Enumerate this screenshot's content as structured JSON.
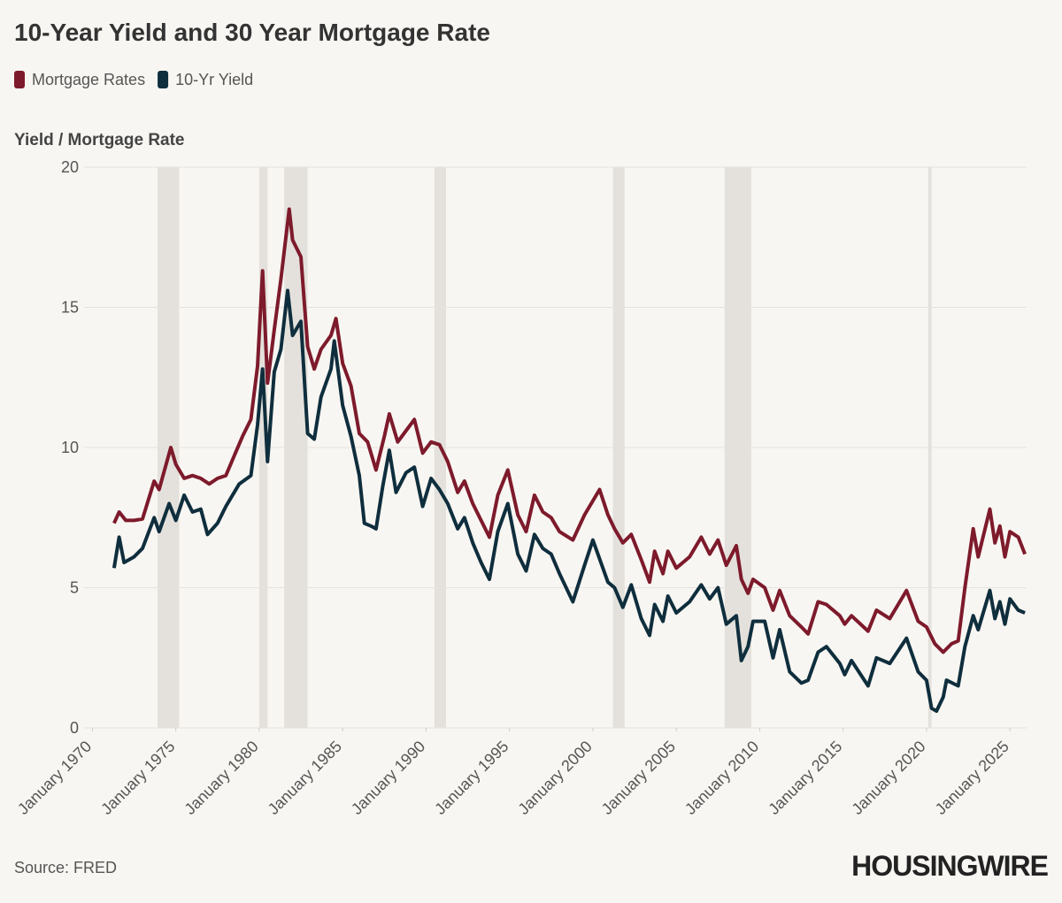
{
  "chart_data": {
    "type": "line",
    "title": "10-Year Yield and 30 Year Mortgage Rate",
    "y_label": "Yield / Mortgage Rate",
    "source": "Source: FRED",
    "brand": "HOUSINGWIRE",
    "xlim": [
      1969.5,
      2026
    ],
    "xticks": [
      {
        "value": 1970,
        "label": "January 1970"
      },
      {
        "value": 1975,
        "label": "January 1975"
      },
      {
        "value": 1980,
        "label": "January 1980"
      },
      {
        "value": 1985,
        "label": "January 1985"
      },
      {
        "value": 1990,
        "label": "January 1990"
      },
      {
        "value": 1995,
        "label": "January 1995"
      },
      {
        "value": 2000,
        "label": "January 2000"
      },
      {
        "value": 2005,
        "label": "January 2005"
      },
      {
        "value": 2010,
        "label": "January 2010"
      },
      {
        "value": 2015,
        "label": "January 2015"
      },
      {
        "value": 2020,
        "label": "January 2020"
      },
      {
        "value": 2025,
        "label": "January 2025"
      }
    ],
    "ylim": [
      0,
      20
    ],
    "yticks": [
      0,
      5,
      10,
      15,
      20
    ],
    "grid": true,
    "recession_color": "#e4e1dc",
    "recessions": [
      [
        1973.9,
        1975.2
      ],
      [
        1980.0,
        1980.5
      ],
      [
        1981.5,
        1982.9
      ],
      [
        1990.5,
        1991.2
      ],
      [
        2001.2,
        2001.9
      ],
      [
        2007.9,
        2009.5
      ],
      [
        2020.1,
        2020.3
      ]
    ],
    "series": [
      {
        "name": "Mortgage Rates",
        "color": "#7d1a2b",
        "x": [
          1971.3,
          1971.6,
          1972.0,
          1972.5,
          1973.0,
          1973.7,
          1974.0,
          1974.7,
          1975.0,
          1975.5,
          1976.0,
          1976.5,
          1977.0,
          1977.5,
          1978.0,
          1978.5,
          1979.0,
          1979.5,
          1979.9,
          1980.2,
          1980.5,
          1980.9,
          1981.3,
          1981.8,
          1982.0,
          1982.5,
          1982.9,
          1983.3,
          1983.7,
          1984.3,
          1984.6,
          1985.0,
          1985.5,
          1986.0,
          1986.5,
          1987.0,
          1987.5,
          1987.8,
          1988.3,
          1988.8,
          1989.3,
          1989.8,
          1990.3,
          1990.8,
          1991.3,
          1991.9,
          1992.3,
          1992.8,
          1993.3,
          1993.8,
          1994.3,
          1994.9,
          1995.5,
          1996.0,
          1996.5,
          1997.0,
          1997.5,
          1998.0,
          1998.8,
          1999.5,
          2000.4,
          2000.9,
          2001.3,
          2001.8,
          2002.3,
          2002.9,
          2003.4,
          2003.7,
          2004.2,
          2004.5,
          2005.0,
          2005.8,
          2006.5,
          2007.0,
          2007.5,
          2008.0,
          2008.6,
          2008.9,
          2009.3,
          2009.6,
          2010.3,
          2010.8,
          2011.2,
          2011.8,
          2012.5,
          2012.9,
          2013.5,
          2014.0,
          2014.8,
          2015.1,
          2015.5,
          2016.5,
          2017.0,
          2017.8,
          2018.8,
          2019.5,
          2020.0,
          2020.5,
          2021.0,
          2021.5,
          2021.9,
          2022.3,
          2022.8,
          2023.1,
          2023.8,
          2024.1,
          2024.4,
          2024.7,
          2025.0,
          2025.5,
          2025.9
        ],
        "values": [
          7.3,
          7.7,
          7.4,
          7.4,
          7.45,
          8.8,
          8.5,
          10.0,
          9.4,
          8.9,
          9.0,
          8.9,
          8.7,
          8.9,
          9.0,
          9.7,
          10.4,
          11.0,
          12.9,
          16.3,
          12.3,
          14.2,
          16.0,
          18.5,
          17.4,
          16.8,
          13.6,
          12.8,
          13.5,
          14.0,
          14.6,
          13.0,
          12.2,
          10.5,
          10.2,
          9.2,
          10.4,
          11.2,
          10.2,
          10.6,
          11.0,
          9.8,
          10.2,
          10.1,
          9.5,
          8.4,
          8.8,
          8.0,
          7.4,
          6.8,
          8.3,
          9.2,
          7.6,
          7.0,
          8.3,
          7.7,
          7.5,
          7.0,
          6.7,
          7.6,
          8.5,
          7.6,
          7.1,
          6.6,
          6.9,
          6.0,
          5.2,
          6.3,
          5.5,
          6.3,
          5.7,
          6.1,
          6.8,
          6.2,
          6.7,
          5.8,
          6.5,
          5.3,
          4.8,
          5.3,
          5.0,
          4.2,
          4.9,
          4.0,
          3.6,
          3.35,
          4.5,
          4.4,
          4.0,
          3.7,
          4.0,
          3.45,
          4.2,
          3.9,
          4.9,
          3.8,
          3.6,
          3.0,
          2.7,
          3.0,
          3.1,
          5.0,
          7.1,
          6.1,
          7.8,
          6.6,
          7.2,
          6.1,
          7.0,
          6.8,
          6.2
        ]
      },
      {
        "name": "10-Yr Yield",
        "color": "#0f2e3d",
        "x": [
          1971.3,
          1971.6,
          1971.9,
          1972.5,
          1973.0,
          1973.7,
          1974.0,
          1974.6,
          1975.0,
          1975.5,
          1976.0,
          1976.5,
          1976.9,
          1977.5,
          1978.0,
          1978.8,
          1979.5,
          1979.9,
          1980.2,
          1980.5,
          1980.9,
          1981.3,
          1981.7,
          1982.0,
          1982.5,
          1982.9,
          1983.3,
          1983.7,
          1984.3,
          1984.5,
          1985.0,
          1985.5,
          1986.0,
          1986.3,
          1986.7,
          1987.0,
          1987.4,
          1987.8,
          1988.2,
          1988.8,
          1989.3,
          1989.8,
          1990.3,
          1990.8,
          1991.3,
          1991.9,
          1992.3,
          1992.8,
          1993.3,
          1993.8,
          1994.3,
          1994.9,
          1995.5,
          1996.0,
          1996.5,
          1997.0,
          1997.5,
          1998.0,
          1998.8,
          1999.5,
          2000.0,
          2000.9,
          2001.3,
          2001.8,
          2002.3,
          2002.9,
          2003.4,
          2003.7,
          2004.2,
          2004.5,
          2005.0,
          2005.8,
          2006.5,
          2007.0,
          2007.5,
          2008.0,
          2008.6,
          2008.9,
          2009.3,
          2009.6,
          2010.3,
          2010.8,
          2011.2,
          2011.8,
          2012.5,
          2012.9,
          2013.5,
          2014.0,
          2014.8,
          2015.1,
          2015.5,
          2016.5,
          2017.0,
          2017.8,
          2018.8,
          2019.5,
          2020.0,
          2020.3,
          2020.6,
          2021.0,
          2021.2,
          2021.9,
          2022.3,
          2022.8,
          2023.1,
          2023.8,
          2024.1,
          2024.4,
          2024.7,
          2025.0,
          2025.5,
          2025.9
        ],
        "values": [
          5.7,
          6.8,
          5.9,
          6.1,
          6.4,
          7.5,
          7.0,
          8.0,
          7.4,
          8.3,
          7.7,
          7.8,
          6.9,
          7.3,
          7.9,
          8.7,
          9.0,
          10.8,
          12.8,
          9.5,
          12.7,
          13.5,
          15.6,
          14.0,
          14.5,
          10.5,
          10.3,
          11.8,
          12.8,
          13.8,
          11.5,
          10.4,
          9.0,
          7.3,
          7.2,
          7.1,
          8.6,
          9.9,
          8.4,
          9.1,
          9.3,
          7.9,
          8.9,
          8.5,
          8.0,
          7.1,
          7.5,
          6.6,
          5.9,
          5.3,
          7.0,
          8.0,
          6.2,
          5.6,
          6.9,
          6.4,
          6.2,
          5.5,
          4.5,
          5.8,
          6.7,
          5.2,
          5.0,
          4.3,
          5.1,
          3.9,
          3.3,
          4.4,
          3.8,
          4.7,
          4.1,
          4.5,
          5.1,
          4.6,
          5.0,
          3.7,
          4.0,
          2.4,
          2.9,
          3.8,
          3.8,
          2.5,
          3.5,
          2.0,
          1.6,
          1.7,
          2.7,
          2.9,
          2.3,
          1.9,
          2.4,
          1.5,
          2.5,
          2.3,
          3.2,
          2.0,
          1.7,
          0.7,
          0.6,
          1.1,
          1.7,
          1.5,
          2.9,
          4.0,
          3.5,
          4.9,
          3.9,
          4.5,
          3.7,
          4.6,
          4.2,
          4.1
        ]
      }
    ]
  }
}
